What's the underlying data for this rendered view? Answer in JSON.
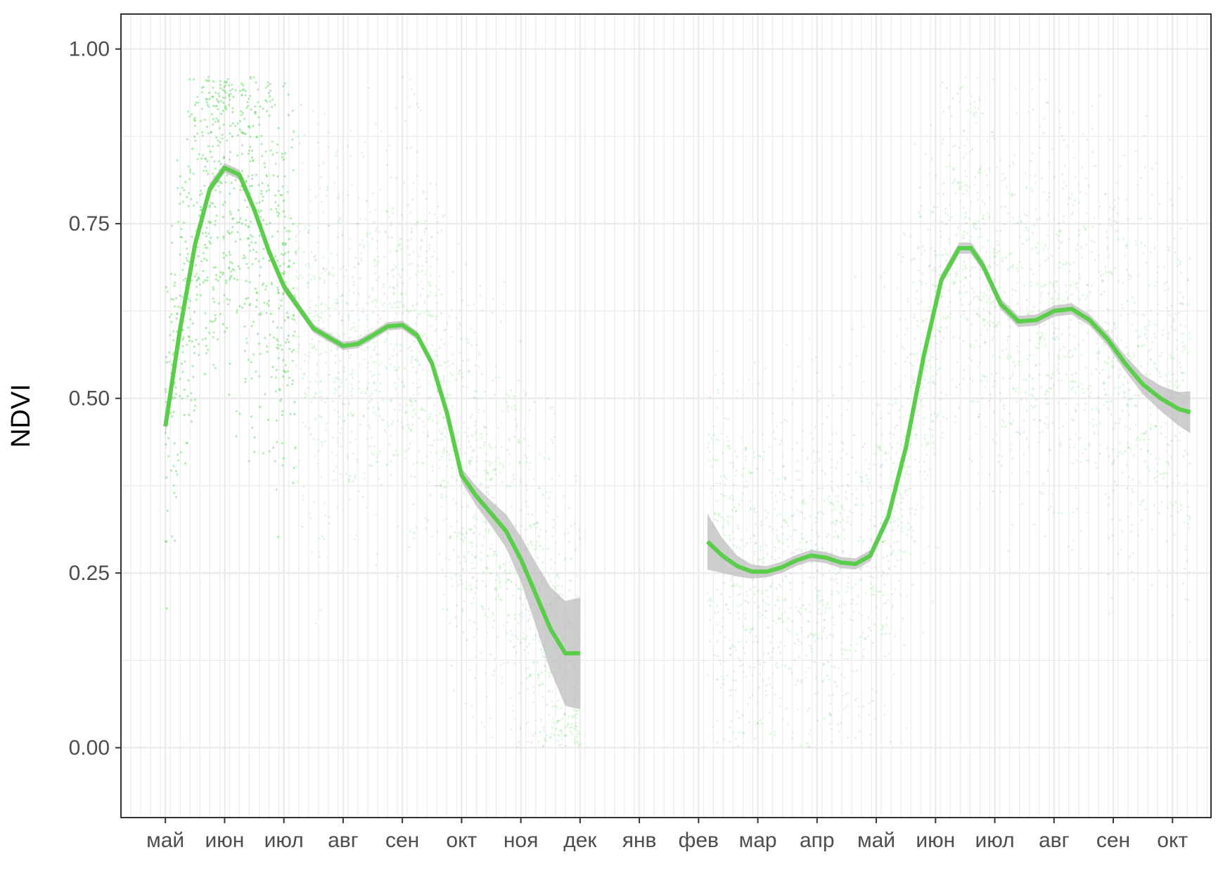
{
  "chart_data": {
    "type": "scatter",
    "title": "",
    "xlabel": "",
    "ylabel": "NDVI",
    "ylim": [
      -0.1,
      1.05
    ],
    "yticks": [
      0.0,
      0.25,
      0.5,
      0.75,
      1.0
    ],
    "ytick_labels": [
      "0.00",
      "0.25",
      "0.50",
      "0.75",
      "1.00"
    ],
    "x_unit": "month",
    "xlim": [
      -0.75,
      17.65
    ],
    "xticks": [
      0,
      1,
      2,
      3,
      4,
      5,
      6,
      7,
      8,
      9,
      10,
      11,
      12,
      13,
      14,
      15,
      16,
      17
    ],
    "xtick_labels": [
      "май",
      "июн",
      "июл",
      "авг",
      "сен",
      "окт",
      "ноя",
      "дек",
      "янв",
      "фев",
      "мар",
      "апр",
      "май",
      "июн",
      "июл",
      "авг",
      "сен",
      "окт"
    ],
    "grid": true,
    "legend": "none",
    "colors": {
      "points": "#5ad45a",
      "line": "#5acd4a",
      "ribbon": "#bdbdbd",
      "grid": "#ebebeb",
      "border": "#333333"
    },
    "series": [
      {
        "kind": "smooth",
        "x": [
          0.0,
          0.25,
          0.5,
          0.75,
          1.0,
          1.25,
          1.5,
          1.75,
          2.0,
          2.5,
          3.0,
          3.25,
          3.5,
          3.75,
          4.0,
          4.25,
          4.5,
          4.75,
          5.0,
          5.25,
          5.5,
          5.75,
          6.0,
          6.25,
          6.5,
          6.75,
          7.0
        ],
        "y": [
          0.46,
          0.6,
          0.72,
          0.8,
          0.83,
          0.82,
          0.77,
          0.71,
          0.66,
          0.6,
          0.575,
          0.578,
          0.59,
          0.603,
          0.605,
          0.59,
          0.55,
          0.48,
          0.39,
          0.36,
          0.335,
          0.31,
          0.27,
          0.22,
          0.17,
          0.135,
          0.135
        ],
        "ribbon_halfwidth": [
          0.012,
          0.01,
          0.009,
          0.008,
          0.007,
          0.007,
          0.007,
          0.007,
          0.007,
          0.006,
          0.006,
          0.006,
          0.006,
          0.006,
          0.006,
          0.006,
          0.007,
          0.008,
          0.01,
          0.014,
          0.018,
          0.024,
          0.032,
          0.045,
          0.06,
          0.075,
          0.08
        ]
      },
      {
        "kind": "smooth",
        "x": [
          9.15,
          9.4,
          9.65,
          9.9,
          10.15,
          10.4,
          10.65,
          10.9,
          11.15,
          11.4,
          11.65,
          11.9,
          12.2,
          12.5,
          12.8,
          13.1,
          13.4,
          13.6,
          13.8,
          14.1,
          14.4,
          14.7,
          15.0,
          15.3,
          15.6,
          15.9,
          16.2,
          16.5,
          16.8,
          17.1,
          17.3
        ],
        "y": [
          0.295,
          0.275,
          0.26,
          0.252,
          0.252,
          0.258,
          0.268,
          0.275,
          0.272,
          0.265,
          0.263,
          0.275,
          0.33,
          0.43,
          0.56,
          0.67,
          0.715,
          0.715,
          0.69,
          0.635,
          0.61,
          0.612,
          0.625,
          0.628,
          0.612,
          0.585,
          0.55,
          0.52,
          0.5,
          0.485,
          0.48
        ],
        "ribbon_halfwidth": [
          0.04,
          0.025,
          0.015,
          0.01,
          0.008,
          0.008,
          0.008,
          0.008,
          0.008,
          0.008,
          0.008,
          0.008,
          0.008,
          0.008,
          0.008,
          0.008,
          0.008,
          0.008,
          0.008,
          0.008,
          0.008,
          0.008,
          0.008,
          0.008,
          0.008,
          0.009,
          0.011,
          0.014,
          0.018,
          0.024,
          0.03
        ]
      }
    ]
  }
}
